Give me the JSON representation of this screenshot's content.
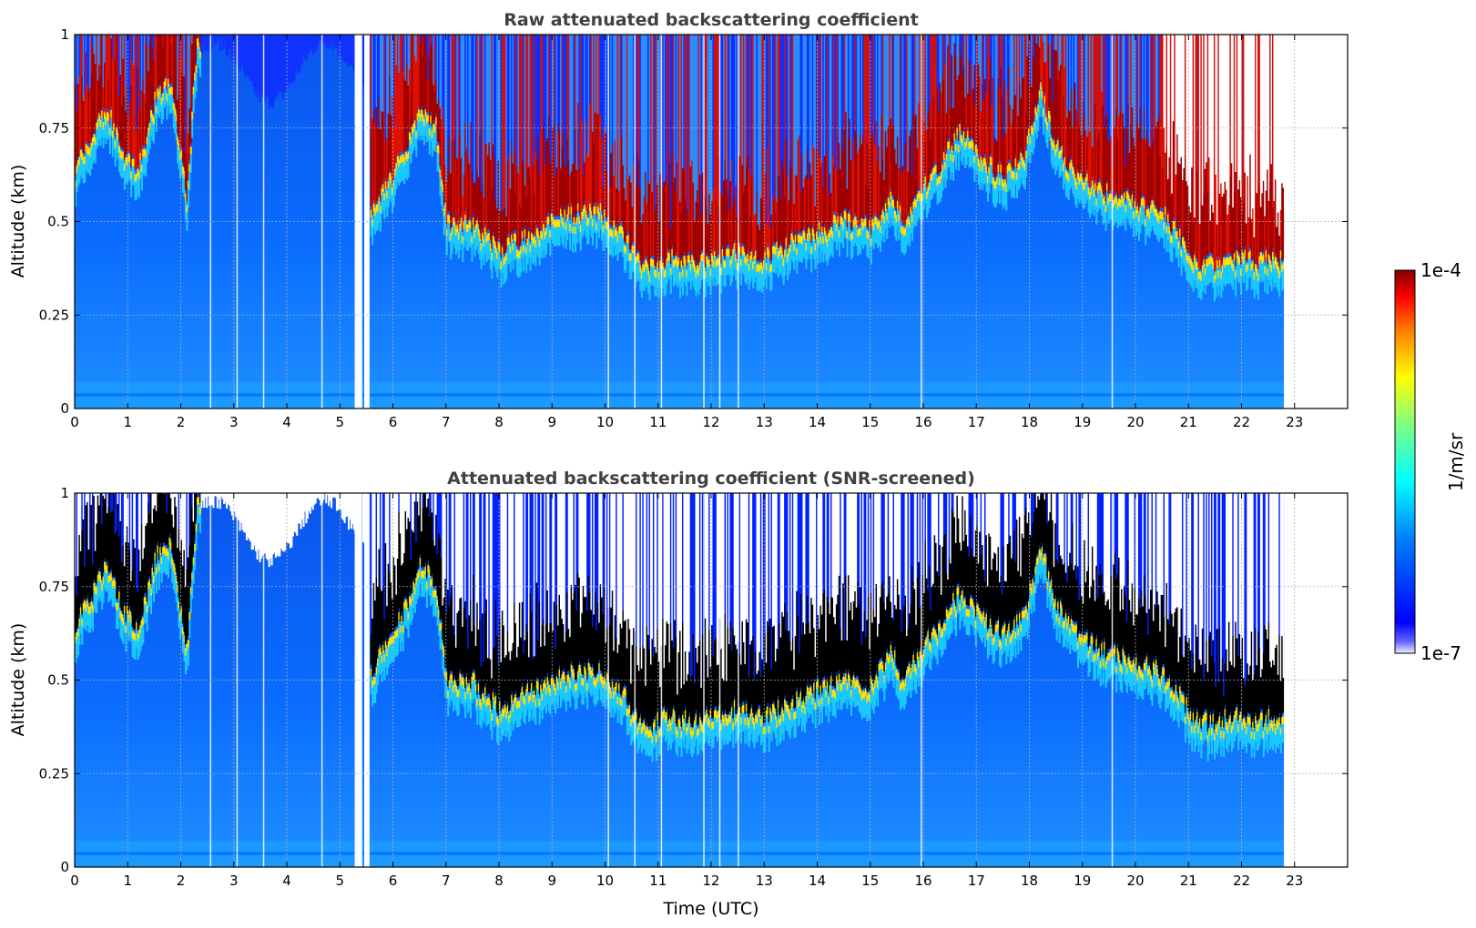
{
  "chart_data": [
    {
      "type": "heatmap",
      "title": "Raw attenuated backscattering coefficient",
      "xlabel": "",
      "ylabel": "Altitude (km)",
      "xlim": [
        0,
        24
      ],
      "ylim": [
        0,
        1
      ],
      "xticks": [
        "0",
        "1",
        "2",
        "3",
        "4",
        "5",
        "6",
        "7",
        "8",
        "9",
        "10",
        "11",
        "12",
        "13",
        "14",
        "15",
        "16",
        "17",
        "18",
        "19",
        "20",
        "21",
        "22",
        "23"
      ],
      "yticks": [
        "0",
        "0.25",
        "0.5",
        "0.75",
        "1"
      ],
      "grid": true,
      "data_end_time": 22.8,
      "data_gaps_utc": [
        [
          5.28,
          5.42
        ],
        [
          5.46,
          5.56
        ]
      ],
      "cloud_base_km": [
        [
          0.0,
          0.62
        ],
        [
          0.3,
          0.7
        ],
        [
          0.6,
          0.78
        ],
        [
          0.9,
          0.66
        ],
        [
          1.2,
          0.62
        ],
        [
          1.5,
          0.8
        ],
        [
          1.8,
          0.86
        ],
        [
          2.1,
          0.55
        ],
        [
          2.3,
          0.97
        ],
        [
          5.6,
          0.5
        ],
        [
          5.9,
          0.58
        ],
        [
          6.2,
          0.66
        ],
        [
          6.5,
          0.78
        ],
        [
          6.8,
          0.74
        ],
        [
          7.0,
          0.47
        ],
        [
          7.5,
          0.47
        ],
        [
          8.0,
          0.4
        ],
        [
          8.5,
          0.44
        ],
        [
          9.0,
          0.48
        ],
        [
          9.5,
          0.5
        ],
        [
          10.0,
          0.5
        ],
        [
          10.5,
          0.4
        ],
        [
          10.8,
          0.35
        ],
        [
          11.2,
          0.38
        ],
        [
          11.6,
          0.37
        ],
        [
          12.0,
          0.38
        ],
        [
          12.5,
          0.4
        ],
        [
          13.0,
          0.38
        ],
        [
          13.5,
          0.42
        ],
        [
          14.0,
          0.45
        ],
        [
          14.5,
          0.48
        ],
        [
          15.0,
          0.46
        ],
        [
          15.4,
          0.55
        ],
        [
          15.6,
          0.48
        ],
        [
          15.9,
          0.55
        ],
        [
          16.3,
          0.63
        ],
        [
          16.7,
          0.72
        ],
        [
          17.1,
          0.64
        ],
        [
          17.5,
          0.6
        ],
        [
          17.9,
          0.66
        ],
        [
          18.2,
          0.83
        ],
        [
          18.5,
          0.68
        ],
        [
          18.9,
          0.6
        ],
        [
          19.3,
          0.56
        ],
        [
          19.7,
          0.54
        ],
        [
          20.1,
          0.52
        ],
        [
          20.5,
          0.5
        ],
        [
          20.8,
          0.44
        ],
        [
          21.1,
          0.37
        ],
        [
          21.4,
          0.36
        ],
        [
          21.8,
          0.38
        ],
        [
          22.3,
          0.37
        ],
        [
          22.8,
          0.38
        ]
      ]
    },
    {
      "type": "heatmap",
      "title": "Attenuated backscattering coefficient (SNR-screened)",
      "xlabel": "Time (UTC)",
      "ylabel": "Altitude (km)",
      "xlim": [
        0,
        24
      ],
      "ylim": [
        0,
        1
      ],
      "xticks": [
        "0",
        "1",
        "2",
        "3",
        "4",
        "5",
        "6",
        "7",
        "8",
        "9",
        "10",
        "11",
        "12",
        "13",
        "14",
        "15",
        "16",
        "17",
        "18",
        "19",
        "20",
        "21",
        "22",
        "23"
      ],
      "yticks": [
        "0",
        "0.25",
        "0.5",
        "0.75",
        "1"
      ],
      "grid": true,
      "data_end_time": 22.8,
      "data_gaps_utc": [
        [
          5.28,
          5.42
        ],
        [
          5.46,
          5.56
        ]
      ],
      "screen_color": "#000000"
    }
  ],
  "colorbar": {
    "label": "1/m/sr",
    "max_label": "1e-4",
    "min_label": "1e-7",
    "colormap": "jet",
    "colors": [
      "#000080",
      "#0000ff",
      "#0080ff",
      "#00ffff",
      "#80ff80",
      "#ffff00",
      "#ff8000",
      "#ff0000",
      "#800000"
    ]
  }
}
